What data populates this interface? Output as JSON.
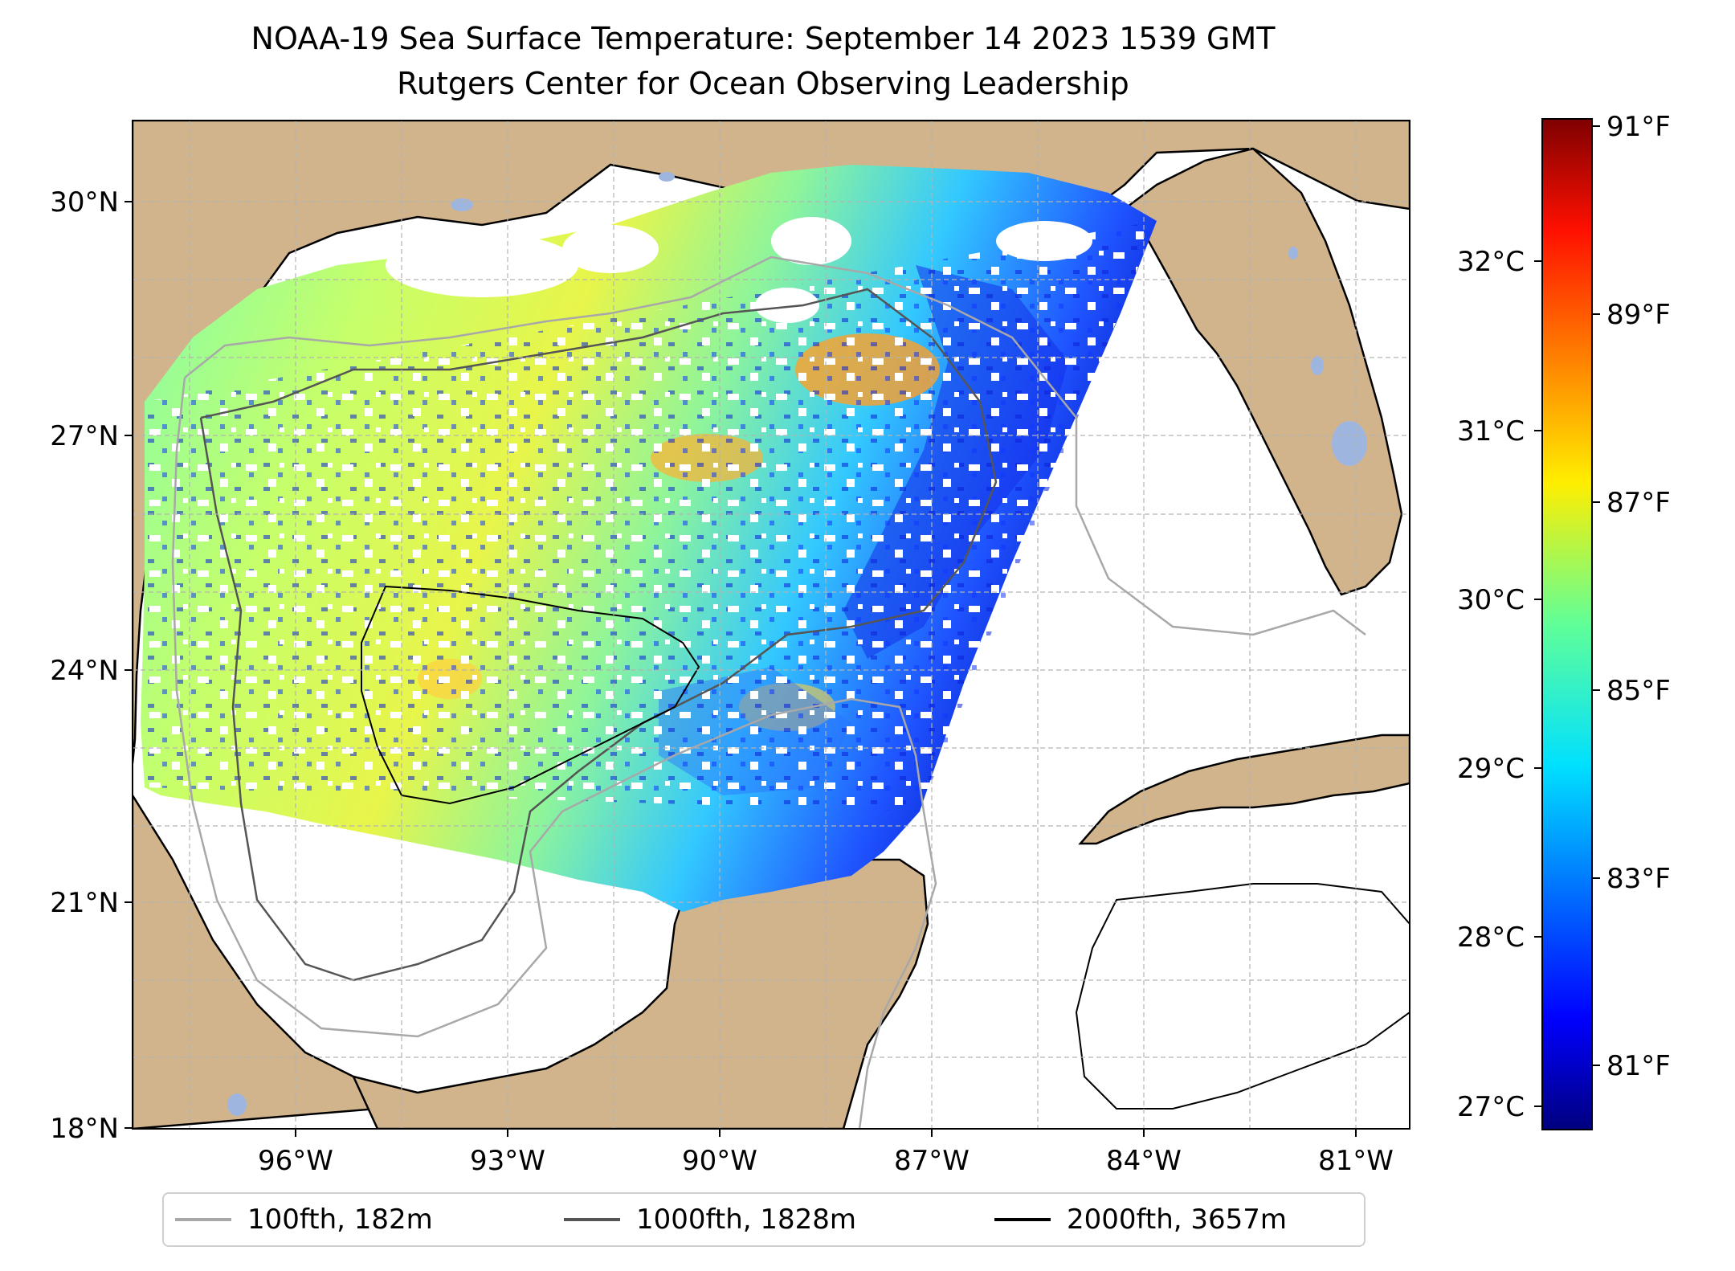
{
  "title": {
    "line1": "NOAA-19 Sea Surface Temperature: September 14 2023 1539 GMT",
    "line2": "Rutgers Center for Ocean Observing Leadership"
  },
  "map": {
    "land_color": "#d1b48c",
    "lake_color": "#9eb6df",
    "lat_ticks": [
      "30°N",
      "27°N",
      "24°N",
      "21°N",
      "18°N"
    ],
    "lon_ticks": [
      "96°W",
      "93°W",
      "90°W",
      "87°W",
      "84°W",
      "81°W"
    ]
  },
  "colorbar": {
    "colormap": "jet",
    "celsius_ticks": [
      "32°C",
      "31°C",
      "30°C",
      "29°C",
      "28°C",
      "27°C"
    ],
    "fahrenheit_ticks": [
      "91°F",
      "89°F",
      "87°F",
      "85°F",
      "83°F",
      "81°F"
    ]
  },
  "legend": {
    "items": [
      {
        "label": "100fth, 182m",
        "color": "#a8a8a8"
      },
      {
        "label": "1000fth, 1828m",
        "color": "#555555"
      },
      {
        "label": "2000fth, 3657m",
        "color": "#000000"
      }
    ]
  }
}
